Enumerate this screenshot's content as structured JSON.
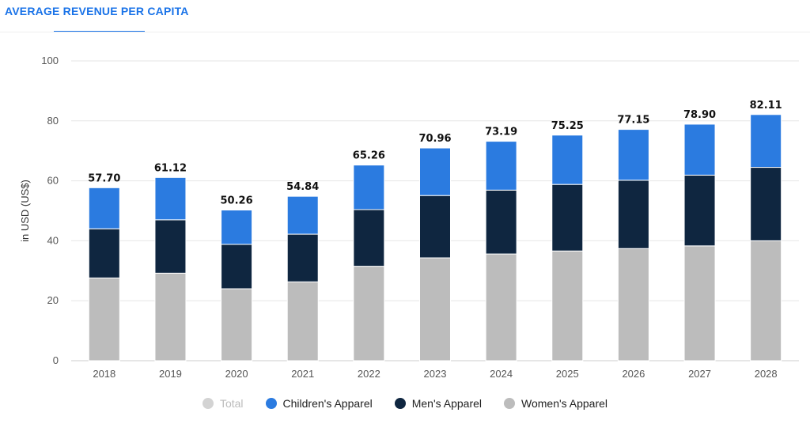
{
  "header": {
    "title": "AVERAGE REVENUE PER CAPITA"
  },
  "legend": [
    {
      "label": "Total",
      "color": "#d3d3d3",
      "inactive": true
    },
    {
      "label": "Children's Apparel",
      "color": "#2b7be0"
    },
    {
      "label": "Men's Apparel",
      "color": "#0f2640"
    },
    {
      "label": "Women's Apparel",
      "color": "#bcbcbc"
    }
  ],
  "chart_data": {
    "type": "bar",
    "stacked": true,
    "categories": [
      "2018",
      "2019",
      "2020",
      "2021",
      "2022",
      "2023",
      "2024",
      "2025",
      "2026",
      "2027",
      "2028"
    ],
    "series": [
      {
        "name": "Women's Apparel",
        "color": "#bcbcbc",
        "values": [
          27.6,
          29.2,
          24.0,
          26.3,
          31.5,
          34.3,
          35.6,
          36.6,
          37.4,
          38.3,
          40.0
        ]
      },
      {
        "name": "Men's Apparel",
        "color": "#0f2640",
        "values": [
          16.4,
          17.8,
          14.8,
          15.9,
          18.9,
          20.8,
          21.3,
          22.2,
          22.8,
          23.6,
          24.5
        ]
      },
      {
        "name": "Children's Apparel",
        "color": "#2b7be0",
        "values": [
          13.7,
          14.12,
          11.46,
          12.64,
          14.86,
          15.86,
          16.29,
          16.45,
          16.95,
          17.0,
          17.61
        ]
      }
    ],
    "totals": [
      "57.70",
      "61.12",
      "50.26",
      "54.84",
      "65.26",
      "70.96",
      "73.19",
      "75.25",
      "77.15",
      "78.90",
      "82.11"
    ],
    "ylabel": "in USD (US$)",
    "ylim": [
      0,
      100
    ],
    "yticks": [
      0,
      20,
      40,
      60,
      80,
      100
    ],
    "grid": true
  }
}
